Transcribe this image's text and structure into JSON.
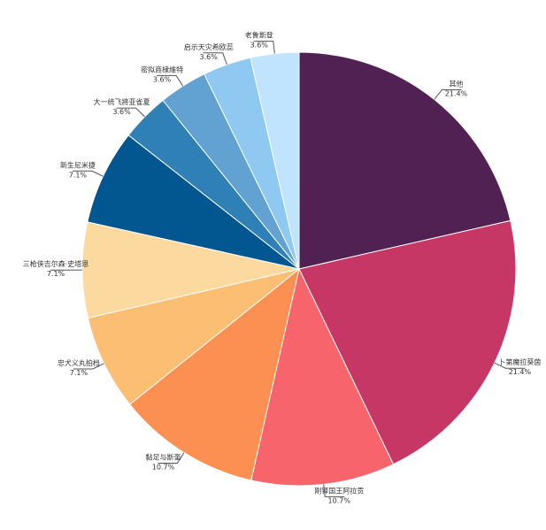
{
  "chart_data": {
    "type": "pie",
    "title": "",
    "categories": [
      "其他",
      "卜第魔拉葵茵",
      "刚铎国王阿拉贡",
      "黏足与斯奎",
      "忠犬义丸拍档",
      "三枪侠吉尔森·史塔恩",
      "新生尼米捷",
      "大一统飞將亚雀夏",
      "密拟商棣維特",
      "启示天灾希欧蕊",
      "老鲁斯登"
    ],
    "values": [
      21.4,
      21.4,
      10.7,
      10.7,
      7.1,
      7.1,
      7.1,
      3.6,
      3.6,
      3.6,
      3.6
    ],
    "value_labels": [
      "21.4%",
      "21.4%",
      "10.7%",
      "10.7%",
      "7.1%",
      "7.1%",
      "7.1%",
      "3.6%",
      "3.6%",
      "3.6%",
      "3.6%"
    ],
    "colors": [
      "#522153",
      "#c73766",
      "#f8646b",
      "#fb9052",
      "#fcbe72",
      "#fcd99e",
      "#035791",
      "#2e80b7",
      "#62a2d3",
      "#8fc9f2",
      "#c0e4fd"
    ],
    "start_angle_deg": 0,
    "direction": "clockwise",
    "legend": "none"
  }
}
